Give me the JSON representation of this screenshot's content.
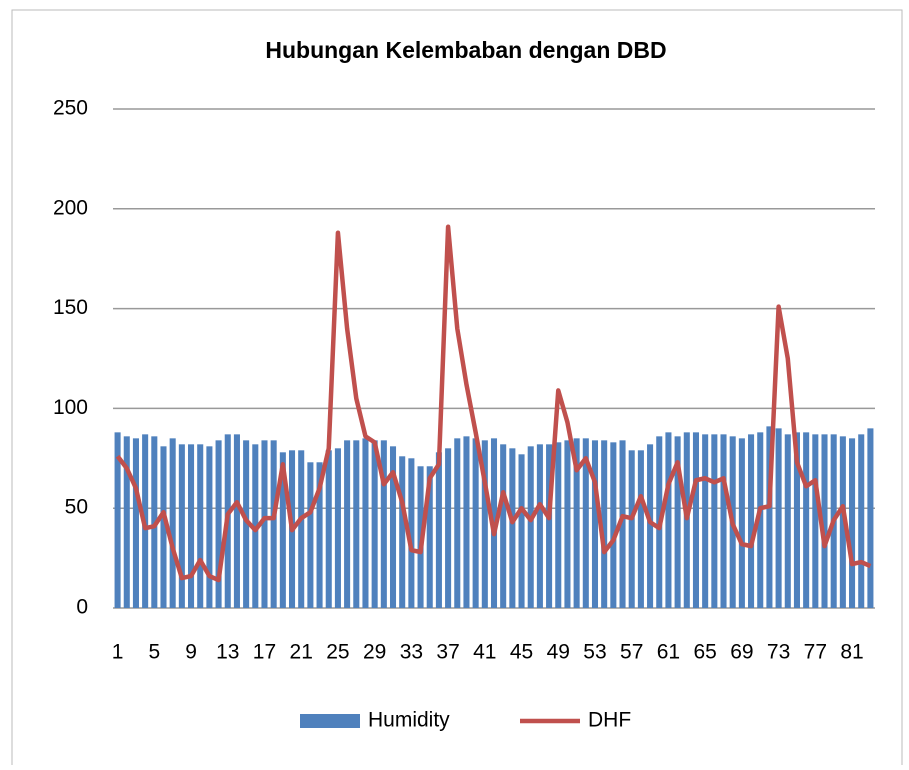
{
  "chart_data": {
    "type": "bar-line",
    "title": "Hubungan Kelembaban dengan DBD",
    "categories": [
      "1",
      null,
      null,
      null,
      "5",
      null,
      null,
      null,
      "9",
      null,
      null,
      null,
      "13",
      null,
      null,
      null,
      "17",
      null,
      null,
      null,
      "21",
      null,
      null,
      null,
      "25",
      null,
      null,
      null,
      "29",
      null,
      null,
      null,
      "33",
      null,
      null,
      null,
      "37",
      null,
      null,
      null,
      "41",
      null,
      null,
      null,
      "45",
      null,
      null,
      null,
      "49",
      null,
      null,
      null,
      "53",
      null,
      null,
      null,
      "57",
      null,
      null,
      null,
      "61",
      null,
      null,
      null,
      "65",
      null,
      null,
      null,
      "69",
      null,
      null,
      null,
      "73",
      null,
      null,
      null,
      "77",
      null,
      null,
      null,
      "81",
      null,
      null
    ],
    "series": [
      {
        "name": "Humidity",
        "type": "bar",
        "color": "#4f81bd",
        "values": [
          88,
          86,
          85,
          87,
          86,
          81,
          85,
          82,
          82,
          82,
          81,
          84,
          87,
          87,
          84,
          82,
          84,
          84,
          78,
          79,
          79,
          73,
          73,
          79,
          80,
          84,
          84,
          85,
          84,
          84,
          81,
          76,
          75,
          71,
          71,
          78,
          80,
          85,
          86,
          85,
          84,
          85,
          82,
          80,
          77,
          81,
          82,
          82,
          83,
          84,
          85,
          85,
          84,
          84,
          83,
          84,
          79,
          79,
          82,
          86,
          88,
          86,
          88,
          88,
          87,
          87,
          87,
          86,
          85,
          87,
          88,
          91,
          90,
          87,
          88,
          88,
          87,
          87,
          87,
          86,
          85,
          87,
          90
        ]
      },
      {
        "name": "DHF",
        "type": "line",
        "color": "#c0504d",
        "values": [
          76,
          70,
          60,
          40,
          41,
          48,
          30,
          15,
          16,
          24,
          16,
          14,
          47,
          53,
          44,
          39,
          45,
          45,
          72,
          39,
          45,
          48,
          60,
          80,
          188,
          140,
          105,
          86,
          83,
          62,
          68,
          53,
          29,
          28,
          65,
          72,
          191,
          140,
          112,
          88,
          63,
          37,
          58,
          43,
          50,
          44,
          52,
          45,
          109,
          93,
          69,
          75,
          63,
          28,
          34,
          46,
          45,
          56,
          43,
          40,
          62,
          73,
          45,
          64,
          65,
          63,
          65,
          42,
          32,
          31,
          50,
          51,
          151,
          125,
          73,
          61,
          64,
          31,
          44,
          51,
          22,
          23,
          21
        ]
      }
    ],
    "ylim": [
      0,
      250
    ],
    "yticks": [
      0,
      50,
      100,
      150,
      200,
      250
    ],
    "grid": true,
    "legend": "bottom"
  }
}
